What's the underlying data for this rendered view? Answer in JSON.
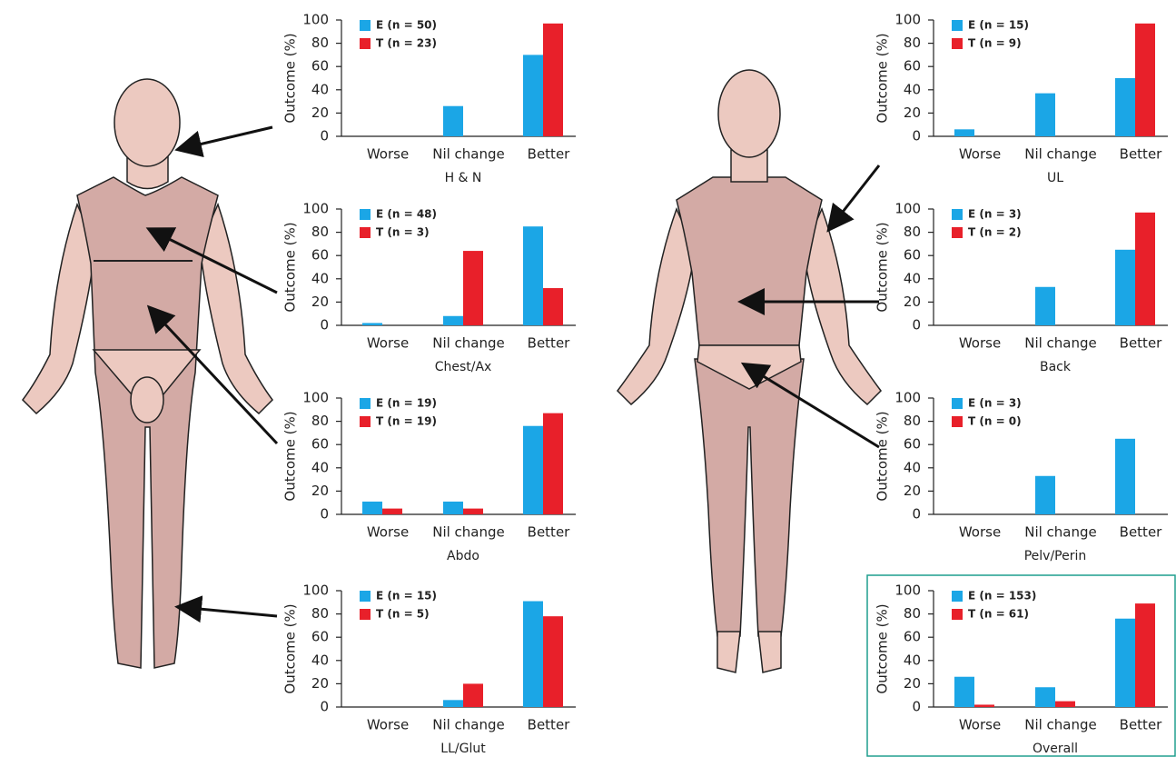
{
  "chart_data": [
    {
      "type": "bar",
      "title": "H & N",
      "y_label": "Outcome (%)",
      "categories": [
        "Worse",
        "Nil change",
        "Better"
      ],
      "ylim": [
        0,
        100
      ],
      "yticks": [
        0,
        20,
        40,
        60,
        80,
        100
      ],
      "series": [
        {
          "name": "E (n = 50)",
          "color": "#1ba6e6",
          "values": [
            0,
            26,
            70
          ]
        },
        {
          "name": "T (n = 23)",
          "color": "#e8202a",
          "values": [
            0,
            0,
            97
          ]
        }
      ]
    },
    {
      "type": "bar",
      "title": "Chest/Ax",
      "y_label": "Outcome (%)",
      "categories": [
        "Worse",
        "Nil change",
        "Better"
      ],
      "ylim": [
        0,
        100
      ],
      "yticks": [
        0,
        20,
        40,
        60,
        80,
        100
      ],
      "series": [
        {
          "name": "E (n = 48)",
          "color": "#1ba6e6",
          "values": [
            2,
            8,
            85
          ]
        },
        {
          "name": "T (n = 3)",
          "color": "#e8202a",
          "values": [
            0,
            64,
            32
          ]
        }
      ]
    },
    {
      "type": "bar",
      "title": "Abdo",
      "y_label": "Outcome (%)",
      "categories": [
        "Worse",
        "Nil change",
        "Better"
      ],
      "ylim": [
        0,
        100
      ],
      "yticks": [
        0,
        20,
        40,
        60,
        80,
        100
      ],
      "series": [
        {
          "name": "E (n = 19)",
          "color": "#1ba6e6",
          "values": [
            11,
            11,
            76
          ]
        },
        {
          "name": "T (n = 19)",
          "color": "#e8202a",
          "values": [
            5,
            5,
            87
          ]
        }
      ]
    },
    {
      "type": "bar",
      "title": "LL/Glut",
      "y_label": "Outcome (%)",
      "categories": [
        "Worse",
        "Nil change",
        "Better"
      ],
      "ylim": [
        0,
        100
      ],
      "yticks": [
        0,
        20,
        40,
        60,
        80,
        100
      ],
      "series": [
        {
          "name": "E (n = 15)",
          "color": "#1ba6e6",
          "values": [
            0,
            6,
            91
          ]
        },
        {
          "name": "T (n = 5)",
          "color": "#e8202a",
          "values": [
            0,
            20,
            78
          ]
        }
      ]
    },
    {
      "type": "bar",
      "title": "UL",
      "y_label": "Outcome (%)",
      "categories": [
        "Worse",
        "Nil change",
        "Better"
      ],
      "ylim": [
        0,
        100
      ],
      "yticks": [
        0,
        20,
        40,
        60,
        80,
        100
      ],
      "series": [
        {
          "name": "E (n = 15)",
          "color": "#1ba6e6",
          "values": [
            6,
            37,
            50
          ]
        },
        {
          "name": "T (n = 9)",
          "color": "#e8202a",
          "values": [
            0,
            0,
            97
          ]
        }
      ]
    },
    {
      "type": "bar",
      "title": "Back",
      "y_label": "Outcome (%)",
      "categories": [
        "Worse",
        "Nil change",
        "Better"
      ],
      "ylim": [
        0,
        100
      ],
      "yticks": [
        0,
        20,
        40,
        60,
        80,
        100
      ],
      "series": [
        {
          "name": "E (n = 3)",
          "color": "#1ba6e6",
          "values": [
            0,
            33,
            65
          ]
        },
        {
          "name": "T (n = 2)",
          "color": "#e8202a",
          "values": [
            0,
            0,
            97
          ]
        }
      ]
    },
    {
      "type": "bar",
      "title": "Pelv/Perin",
      "y_label": "Outcome (%)",
      "categories": [
        "Worse",
        "Nil change",
        "Better"
      ],
      "ylim": [
        0,
        100
      ],
      "yticks": [
        0,
        20,
        40,
        60,
        80,
        100
      ],
      "series": [
        {
          "name": "E (n = 3)",
          "color": "#1ba6e6",
          "values": [
            0,
            33,
            65
          ]
        },
        {
          "name": "T (n = 0)",
          "color": "#e8202a",
          "values": [
            0,
            0,
            0
          ]
        }
      ]
    },
    {
      "type": "bar",
      "title": "Overall",
      "y_label": "Outcome (%)",
      "categories": [
        "Worse",
        "Nil change",
        "Better"
      ],
      "ylim": [
        0,
        100
      ],
      "yticks": [
        0,
        20,
        40,
        60,
        80,
        100
      ],
      "series": [
        {
          "name": "E (n = 153)",
          "color": "#1ba6e6",
          "values": [
            26,
            17,
            76
          ]
        },
        {
          "name": "T (n = 61)",
          "color": "#e8202a",
          "values": [
            2,
            5,
            89
          ]
        }
      ]
    }
  ]
}
